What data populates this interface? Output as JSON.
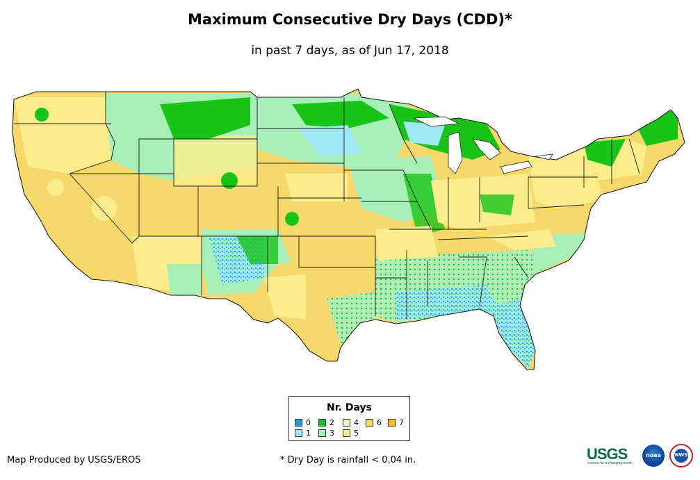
{
  "title": "Maximum Consecutive Dry Days (CDD)*",
  "subtitle": "in past 7 days, as of Jun 17, 2018",
  "legend": {
    "title": "Nr. Days",
    "items": [
      {
        "label": "0",
        "color": "#1f9ee8"
      },
      {
        "label": "1",
        "color": "#9ee7f7"
      },
      {
        "label": "2",
        "color": "#18c418"
      },
      {
        "label": "3",
        "color": "#a8eeb8"
      },
      {
        "label": "4",
        "color": "#f4f6c0"
      },
      {
        "label": "5",
        "color": "#fbed8c"
      },
      {
        "label": "6",
        "color": "#f7d86a"
      },
      {
        "label": "7",
        "color": "#f4c21a"
      }
    ]
  },
  "footer": {
    "producer": "Map Produced by USGS/EROS",
    "note": "* Dry Day is rainfall < 0.04 in."
  },
  "logos": {
    "usgs": "USGS",
    "usgs_tagline": "science for a changing world",
    "noaa": "noaa",
    "nws": "NWS"
  },
  "map": {
    "region": "Contiguous United States",
    "classes": [
      "0",
      "1",
      "2",
      "3",
      "4",
      "5",
      "6",
      "7"
    ]
  }
}
